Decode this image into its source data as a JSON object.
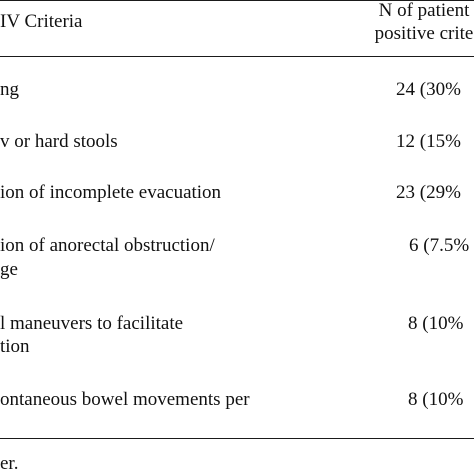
{
  "header": {
    "criteria_label": "IV Criteria",
    "count_label_line1": "N of patient",
    "count_label_line2": "positive crite"
  },
  "rows": [
    {
      "criterion_line1": "ng",
      "criterion_line2": "",
      "value": "24 (30%"
    },
    {
      "criterion_line1": "v or hard stools",
      "criterion_line2": "",
      "value": "12 (15%"
    },
    {
      "criterion_line1": "ion of incomplete evacuation",
      "criterion_line2": "",
      "value": "23 (29%"
    },
    {
      "criterion_line1": "ion of anorectal obstruction/",
      "criterion_line2": "ge",
      "value": "6 (7.5%"
    },
    {
      "criterion_line1": "l maneuvers to facilitate",
      "criterion_line2": "tion",
      "value": "8 (10%"
    },
    {
      "criterion_line1": "ontaneous bowel movements per",
      "criterion_line2": "",
      "value": "8 (10%"
    }
  ],
  "footnote": "er."
}
